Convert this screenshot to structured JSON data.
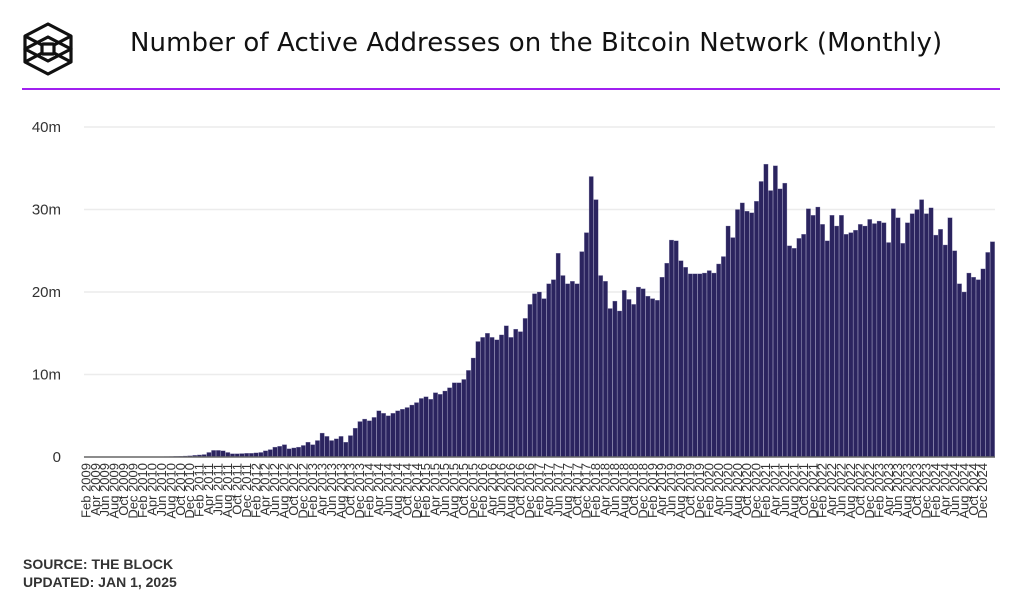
{
  "header": {
    "title": "Number of Active Addresses on the Bitcoin Network (Monthly)",
    "logo_icon": "the-block-cube-logo",
    "accent_color": "#a020f0"
  },
  "footer": {
    "source": "SOURCE: THE BLOCK",
    "updated": "UPDATED: JAN 1, 2025"
  },
  "chart_data": {
    "type": "bar",
    "title": "Number of Active Addresses on the Bitcoin Network (Monthly)",
    "xlabel": "",
    "ylabel": "",
    "unit": "millions",
    "ylim": [
      0,
      40
    ],
    "yticks": [
      0,
      10,
      20,
      30,
      40
    ],
    "ytick_labels": [
      "0",
      "10m",
      "20m",
      "30m",
      "40m"
    ],
    "grid": true,
    "legend": "none",
    "bar_color": "#2b245f",
    "start_month": "2009-02",
    "tick_every_months": 2,
    "tick_labels": [
      "Feb 2009",
      "Apr 2009",
      "Jun 2009",
      "Aug 2009",
      "Oct 2009",
      "Dec 2009",
      "Feb 2010",
      "Apr 2010",
      "Jun 2010",
      "Aug 2010",
      "Oct 2010",
      "Dec 2010",
      "Feb 2011",
      "Apr 2011",
      "Jun 2011",
      "Aug 2011",
      "Oct 2011",
      "Dec 2011",
      "Feb 2012",
      "Apr 2012",
      "Jun 2012",
      "Aug 2012",
      "Oct 2012",
      "Dec 2012",
      "Feb 2013",
      "Apr 2013",
      "Jun 2013",
      "Aug 2013",
      "Oct 2013",
      "Dec 2013",
      "Feb 2014",
      "Apr 2014",
      "Jun 2014",
      "Aug 2014",
      "Oct 2014",
      "Dec 2014",
      "Feb 2015",
      "Apr 2015",
      "Jun 2015",
      "Aug 2015",
      "Oct 2015",
      "Dec 2015",
      "Feb 2016",
      "Apr 2016",
      "Jun 2016",
      "Aug 2016",
      "Oct 2016",
      "Dec 2016",
      "Feb 2017",
      "Apr 2017",
      "Jun 2017",
      "Aug 2017",
      "Oct 2017",
      "Dec 2017",
      "Feb 2018",
      "Apr 2018",
      "Jun 2018",
      "Aug 2018",
      "Oct 2018",
      "Dec 2018",
      "Feb 2019",
      "Apr 2019",
      "Jun 2019",
      "Aug 2019",
      "Oct 2019",
      "Dec 2019",
      "Feb 2020",
      "Apr 2020",
      "Jun 2020",
      "Aug 2020",
      "Oct 2020",
      "Dec 2020",
      "Feb 2021",
      "Apr 2021",
      "Jun 2021",
      "Aug 2021",
      "Oct 2021",
      "Dec 2021",
      "Feb 2022",
      "Apr 2022",
      "Jun 2022",
      "Aug 2022",
      "Oct 2022",
      "Dec 2022",
      "Feb 2023",
      "Apr 2023",
      "Jun 2023",
      "Aug 2023",
      "Oct 2023",
      "Dec 2023",
      "Feb 2024",
      "Apr 2024",
      "Jun 2024",
      "Aug 2024",
      "Oct 2024",
      "Dec 2024"
    ],
    "values": [
      0.01,
      0.01,
      0.01,
      0.01,
      0.01,
      0.01,
      0.01,
      0.01,
      0.01,
      0.01,
      0.01,
      0.02,
      0.02,
      0.02,
      0.03,
      0.03,
      0.04,
      0.05,
      0.06,
      0.08,
      0.1,
      0.12,
      0.15,
      0.2,
      0.25,
      0.3,
      0.55,
      0.8,
      0.8,
      0.75,
      0.55,
      0.4,
      0.4,
      0.42,
      0.45,
      0.45,
      0.5,
      0.55,
      0.75,
      0.9,
      1.2,
      1.3,
      1.5,
      1.0,
      1.1,
      1.2,
      1.4,
      1.8,
      1.5,
      2.0,
      2.9,
      2.5,
      2.0,
      2.2,
      2.5,
      1.8,
      2.6,
      3.5,
      4.3,
      4.6,
      4.4,
      4.8,
      5.6,
      5.3,
      5.0,
      5.3,
      5.6,
      5.8,
      6.0,
      6.3,
      6.6,
      7.1,
      7.3,
      7.0,
      7.8,
      7.6,
      8.0,
      8.4,
      9.0,
      9.0,
      9.4,
      10.5,
      12.0,
      14.0,
      14.5,
      15.0,
      14.5,
      14.2,
      14.8,
      15.9,
      14.5,
      15.5,
      15.2,
      16.8,
      18.5,
      19.8,
      20.0,
      19.2,
      21.0,
      21.5,
      24.7,
      22.0,
      21.0,
      21.3,
      21.0,
      24.9,
      27.2,
      34.0,
      31.2,
      22.0,
      21.3,
      18.0,
      18.9,
      17.7,
      20.2,
      19.1,
      18.5,
      20.6,
      20.4,
      19.5,
      19.2,
      19.0,
      21.8,
      23.5,
      26.3,
      26.2,
      23.8,
      23.0,
      22.2,
      22.2,
      22.2,
      22.3,
      22.6,
      22.3,
      23.4,
      24.3,
      28.0,
      26.6,
      30.0,
      30.8,
      29.8,
      29.6,
      31.0,
      33.4,
      35.5,
      32.3,
      35.3,
      32.5,
      33.2,
      25.6,
      25.3,
      26.5,
      27.0,
      30.1,
      29.3,
      30.3,
      28.2,
      26.2,
      29.3,
      28.0,
      29.3,
      27.0,
      27.2,
      27.5,
      28.2,
      28.0,
      28.8,
      28.3,
      28.6,
      28.4,
      26.0,
      30.1,
      29.0,
      25.9,
      28.4,
      29.5,
      30.0,
      31.2,
      29.5,
      30.2,
      26.9,
      27.6,
      25.7,
      29.0,
      25.0,
      21.0,
      20.0,
      22.3,
      21.8,
      21.5,
      22.8,
      24.8,
      26.1
    ]
  }
}
